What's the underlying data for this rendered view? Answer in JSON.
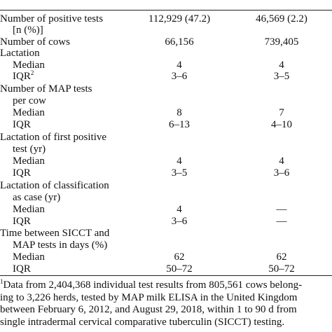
{
  "table": {
    "rows": [
      {
        "label": "Number of positive tests",
        "cells": [
          "112,929 (47.2)",
          "46,569 (2.2)"
        ]
      },
      {
        "label": "[n (%)]"
      },
      {
        "label": "Number of cows",
        "cells": [
          "66,156",
          "739,405"
        ]
      },
      {
        "label": "Lactation"
      },
      {
        "label": "Median",
        "cells": [
          "4",
          "4"
        ]
      },
      {
        "label": "IQR",
        "mark": "2",
        "cells": [
          "3–6",
          "3–5"
        ]
      },
      {
        "label": "Number of MAP tests"
      },
      {
        "label": "per cow"
      },
      {
        "label": "Median",
        "cells": [
          "8",
          "7"
        ]
      },
      {
        "label": "IQR",
        "cells": [
          "6–13",
          "4–10"
        ]
      },
      {
        "label": "Lactation of first positive"
      },
      {
        "label": "test (yr)"
      },
      {
        "label": "Median",
        "cells": [
          "4",
          "4"
        ]
      },
      {
        "label": "IQR",
        "cells": [
          "3–5",
          "3–6"
        ]
      },
      {
        "label": "Lactation of classification"
      },
      {
        "label": "as case (yr)"
      },
      {
        "label": "Median",
        "cells": [
          "4",
          "—"
        ]
      },
      {
        "label": "IQR",
        "cells": [
          "3–6",
          "—"
        ]
      },
      {
        "label": "Time between SICCT and"
      },
      {
        "label": "MAP tests in days (%)"
      },
      {
        "label": "Median",
        "cells": [
          "62",
          "62"
        ]
      },
      {
        "label": "IQR",
        "cells": [
          "50–72",
          "50–72"
        ]
      }
    ]
  },
  "footnote": {
    "mark": "1",
    "lines": [
      "Data from 2,404,368 individual test results from 805,561 cows belong-",
      "ing to 3,226 herds, tested by MAP milk ELISA in the United Kingdom",
      "between February 6, 2012, and August 29, 2018, within 1 to 90 d from",
      "single intradermal cervical comparative tuberculin (SICCT) testing."
    ]
  }
}
